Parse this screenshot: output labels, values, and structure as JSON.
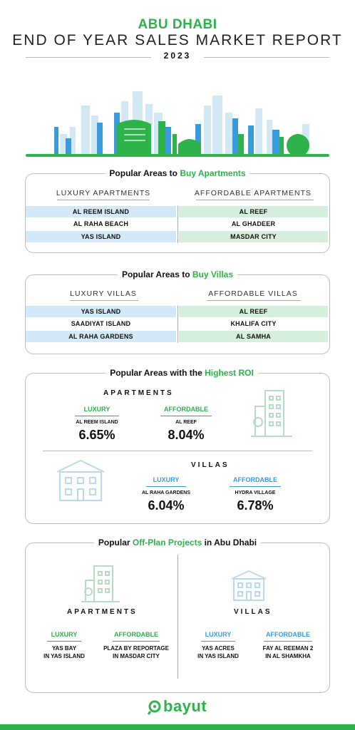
{
  "header": {
    "city": "ABU DHABI",
    "title": "END OF YEAR SALES MARKET REPORT",
    "year": "2023"
  },
  "apartments_panel": {
    "title_prefix": "Popular Areas to ",
    "title_highlight": "Buy Apartments",
    "luxury_head": "LUXURY APARTMENTS",
    "affordable_head": "AFFORDABLE APARTMENTS",
    "luxury": [
      "AL REEM ISLAND",
      "AL RAHA BEACH",
      "YAS ISLAND"
    ],
    "affordable": [
      "AL REEF",
      "AL GHADEER",
      "MASDAR CITY"
    ]
  },
  "villas_panel": {
    "title_prefix": "Popular Areas to ",
    "title_highlight": "Buy Villas",
    "luxury_head": "LUXURY VILLAS",
    "affordable_head": "AFFORDABLE VILLAS",
    "luxury": [
      "YAS ISLAND",
      "SAADIYAT ISLAND",
      "AL RAHA GARDENS"
    ],
    "affordable": [
      "AL REEF",
      "KHALIFA CITY",
      "AL SAMHA"
    ]
  },
  "roi_panel": {
    "title_prefix": "Popular Areas with the ",
    "title_highlight": "Highest ROI",
    "apartments": {
      "label": "APARTMENTS",
      "luxury_tag": "LUXURY",
      "luxury_area": "AL REEM ISLAND",
      "luxury_value": "6.65%",
      "affordable_tag": "AFFORDABLE",
      "affordable_area": "AL REEF",
      "affordable_value": "8.04%"
    },
    "villas": {
      "label": "VILLAS",
      "luxury_tag": "LUXURY",
      "luxury_area": "AL RAHA GARDENS",
      "luxury_value": "6.04%",
      "affordable_tag": "AFFORDABLE",
      "affordable_area": "HYDRA VILLAGE",
      "affordable_value": "6.78%"
    }
  },
  "offplan_panel": {
    "title_prefix": "Popular ",
    "title_highlight": "Off-Plan Projects",
    "title_suffix": " in Abu Dhabi",
    "apartments": {
      "label": "APARTMENTS",
      "luxury_tag": "LUXURY",
      "luxury_line1": "YAS BAY",
      "luxury_line2": "IN YAS ISLAND",
      "affordable_tag": "AFFORDABLE",
      "affordable_line1": "PLAZA BY REPORTAGE",
      "affordable_line2": "IN MASDAR CITY"
    },
    "villas": {
      "label": "VILLAS",
      "luxury_tag": "LUXURY",
      "luxury_line1": "YAS ACRES",
      "luxury_line2": "IN YAS ISLAND",
      "affordable_tag": "AFFORDABLE",
      "affordable_line1": "FAY AL REEMAN 2",
      "affordable_line2": "IN AL SHAMKHA"
    }
  },
  "footer": {
    "brand": "bayut"
  },
  "colors": {
    "green": "#2db34a",
    "blue": "#3a9bdc",
    "row_blue": "#d4e9f7",
    "row_green": "#d6efdc"
  }
}
